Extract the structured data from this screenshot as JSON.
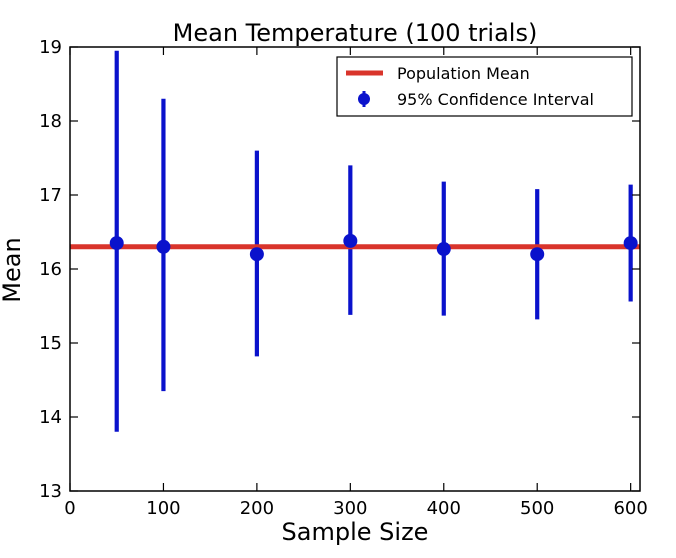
{
  "chart_data": {
    "type": "scatter",
    "title": "Mean Temperature (100 trials)",
    "xlabel": "Sample Size",
    "ylabel": "Mean",
    "xlim": [
      0,
      610
    ],
    "ylim": [
      13,
      19
    ],
    "xticks": [
      "0",
      "100",
      "200",
      "300",
      "400",
      "500",
      "600"
    ],
    "yticks": [
      "13",
      "14",
      "15",
      "16",
      "17",
      "18",
      "19"
    ],
    "grid": false,
    "legend_position": "top-right",
    "population_mean": {
      "name": "Population Mean",
      "value": 16.3,
      "color": "#d9342b"
    },
    "series": [
      {
        "name": "95% Confidence Interval",
        "color": "#0a12cc",
        "points": [
          {
            "x": 50,
            "y": 16.35,
            "low": 13.8,
            "high": 18.95
          },
          {
            "x": 100,
            "y": 16.3,
            "low": 14.35,
            "high": 18.3
          },
          {
            "x": 200,
            "y": 16.2,
            "low": 14.82,
            "high": 17.6
          },
          {
            "x": 300,
            "y": 16.38,
            "low": 15.38,
            "high": 17.4
          },
          {
            "x": 400,
            "y": 16.27,
            "low": 15.37,
            "high": 17.18
          },
          {
            "x": 500,
            "y": 16.2,
            "low": 15.32,
            "high": 17.08
          },
          {
            "x": 600,
            "y": 16.35,
            "low": 15.56,
            "high": 17.14
          }
        ]
      }
    ]
  }
}
